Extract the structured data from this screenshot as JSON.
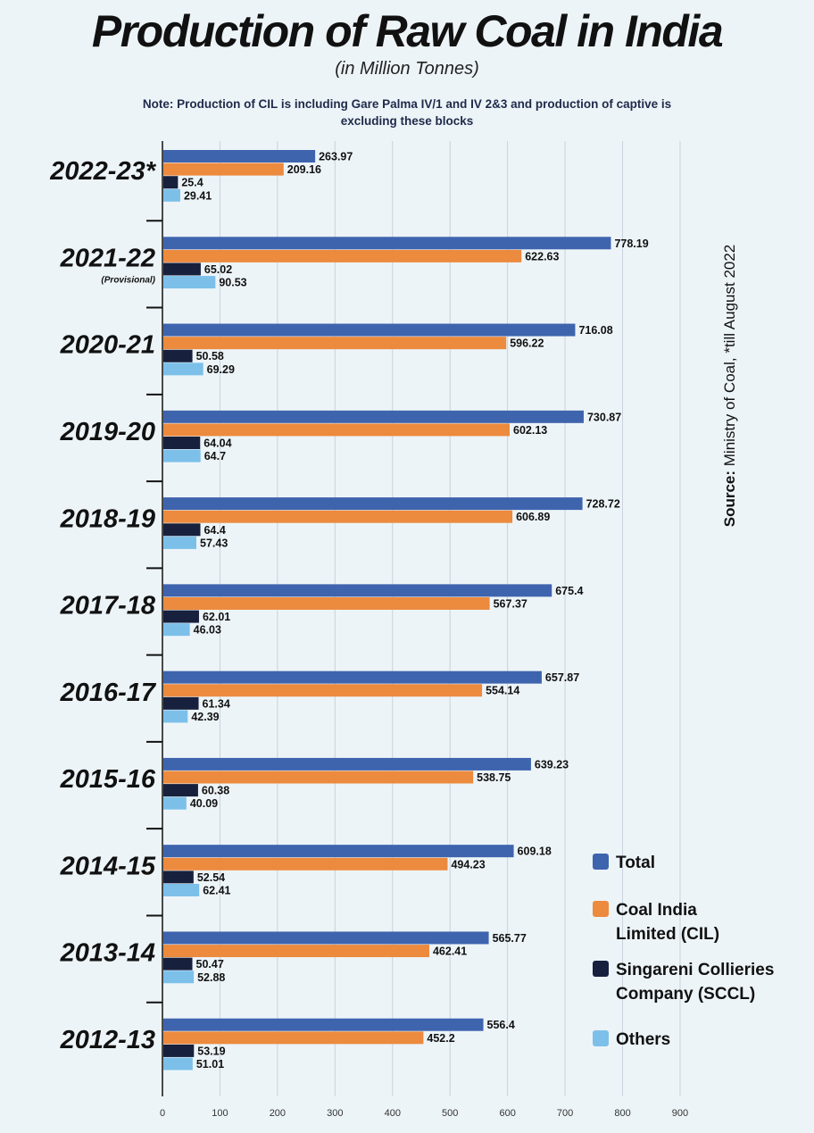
{
  "title": "Production of Raw Coal in India",
  "subtitle": "(in Million Tonnes)",
  "note": "Note: Production of CIL is including Gare Palma IV/1 and IV 2&3 and production of captive is excluding these blocks",
  "source": {
    "label": "Source:",
    "text": " Ministry of Coal, *till August 2022"
  },
  "colors": {
    "total": "#3f64ae",
    "cil": "#ec8a3e",
    "sccl": "#17203c",
    "others": "#7cc0ea",
    "grid": "#c9d2dc",
    "axis": "#111111"
  },
  "chart_data": {
    "type": "bar",
    "orientation": "horizontal",
    "xlim": [
      0,
      900
    ],
    "x_ticks": [
      "0",
      "100",
      "200",
      "300",
      "400",
      "500",
      "600",
      "700",
      "800",
      "900"
    ],
    "grid": true,
    "legend_position": "bottom-right",
    "categories": [
      {
        "label": "2022-23*",
        "sublabel": ""
      },
      {
        "label": "2021-22",
        "sublabel": "(Provisional)"
      },
      {
        "label": "2020-21",
        "sublabel": ""
      },
      {
        "label": "2019-20",
        "sublabel": ""
      },
      {
        "label": "2018-19",
        "sublabel": ""
      },
      {
        "label": "2017-18",
        "sublabel": ""
      },
      {
        "label": "2016-17",
        "sublabel": ""
      },
      {
        "label": "2015-16",
        "sublabel": ""
      },
      {
        "label": "2014-15",
        "sublabel": ""
      },
      {
        "label": "2013-14",
        "sublabel": ""
      },
      {
        "label": "2012-13",
        "sublabel": ""
      }
    ],
    "series": [
      {
        "key": "total",
        "name": "Total",
        "values": [
          263.97,
          778.19,
          716.08,
          730.87,
          728.72,
          675.4,
          657.87,
          639.23,
          609.18,
          565.77,
          556.4
        ],
        "labels": [
          "263.97",
          "778.19",
          "716.08",
          "730.87",
          "728.72",
          "675.4",
          "657.87",
          "639.23",
          "609.18",
          "565.77",
          "556.4"
        ]
      },
      {
        "key": "cil",
        "name": "Coal India Limited (CIL)",
        "values": [
          209.16,
          622.63,
          596.22,
          602.13,
          606.89,
          567.37,
          554.14,
          538.75,
          494.23,
          462.41,
          452.2
        ],
        "labels": [
          "209.16",
          "622.63",
          "596.22",
          "602.13",
          "606.89",
          "567.37",
          "554.14",
          "538.75",
          "494.23",
          "462.41",
          "452.2"
        ]
      },
      {
        "key": "sccl",
        "name": "Singareni Collieries Company (SCCL)",
        "values": [
          25.4,
          65.02,
          50.58,
          64.04,
          64.4,
          62.01,
          61.34,
          60.38,
          52.54,
          50.47,
          53.19
        ],
        "labels": [
          "25.4",
          "65.02",
          "50.58",
          "64.04",
          "64.4",
          "62.01",
          "61.34",
          "60.38",
          "52.54",
          "50.47",
          "53.19"
        ]
      },
      {
        "key": "others",
        "name": "Others",
        "values": [
          29.41,
          90.53,
          69.29,
          64.7,
          57.43,
          46.03,
          42.39,
          40.09,
          62.41,
          52.88,
          51.01
        ],
        "labels": [
          "29.41",
          "90.53",
          "69.29",
          "64.7",
          "57.43",
          "46.03",
          "42.39",
          "40.09",
          "62.41",
          "52.88",
          "51.01"
        ]
      }
    ]
  },
  "legend": {
    "items": [
      {
        "label": "Total",
        "color_key": "total"
      },
      {
        "label": "Coal India Limited (CIL)",
        "color_key": "cil"
      },
      {
        "label": "Singareni Collieries Company (SCCL)",
        "color_key": "sccl"
      },
      {
        "label": "Others",
        "color_key": "others"
      }
    ]
  }
}
